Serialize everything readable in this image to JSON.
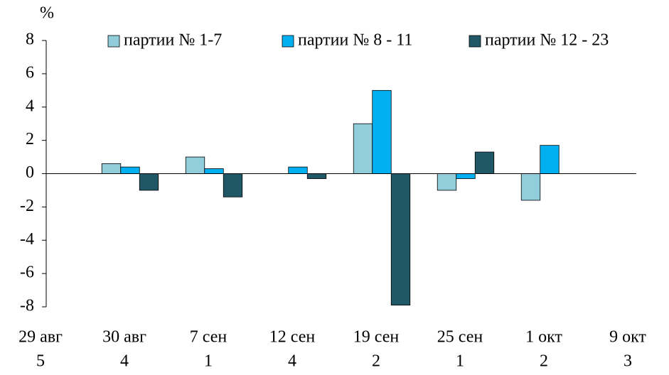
{
  "chart_data": {
    "type": "bar",
    "y_label": "%",
    "categories": [
      "29 авг",
      "30 авг",
      "7 сен",
      "12 сен",
      "19 сен",
      "25 сен",
      "1 окт",
      "9 окт"
    ],
    "category_sublabels": [
      "5",
      "4",
      "1",
      "4",
      "2",
      "1",
      "2",
      "3"
    ],
    "series": [
      {
        "name": "партии № 1-7",
        "color": "#92cddc",
        "values": [
          0,
          0.6,
          1.0,
          0,
          3.0,
          -1.0,
          -1.6,
          0
        ]
      },
      {
        "name": "партии № 8 - 11",
        "color": "#00b0f0",
        "values": [
          0,
          0.4,
          0.3,
          0.4,
          5.0,
          -0.3,
          1.7,
          0
        ]
      },
      {
        "name": "партии № 12 - 23",
        "color": "#215868",
        "values": [
          0,
          -1.0,
          -1.4,
          -0.3,
          -7.9,
          1.3,
          0,
          0
        ]
      }
    ],
    "ylim": [
      -8,
      8
    ],
    "yticks": [
      -8,
      -6,
      -4,
      -2,
      0,
      2,
      4,
      6,
      8
    ],
    "legend": "top"
  }
}
